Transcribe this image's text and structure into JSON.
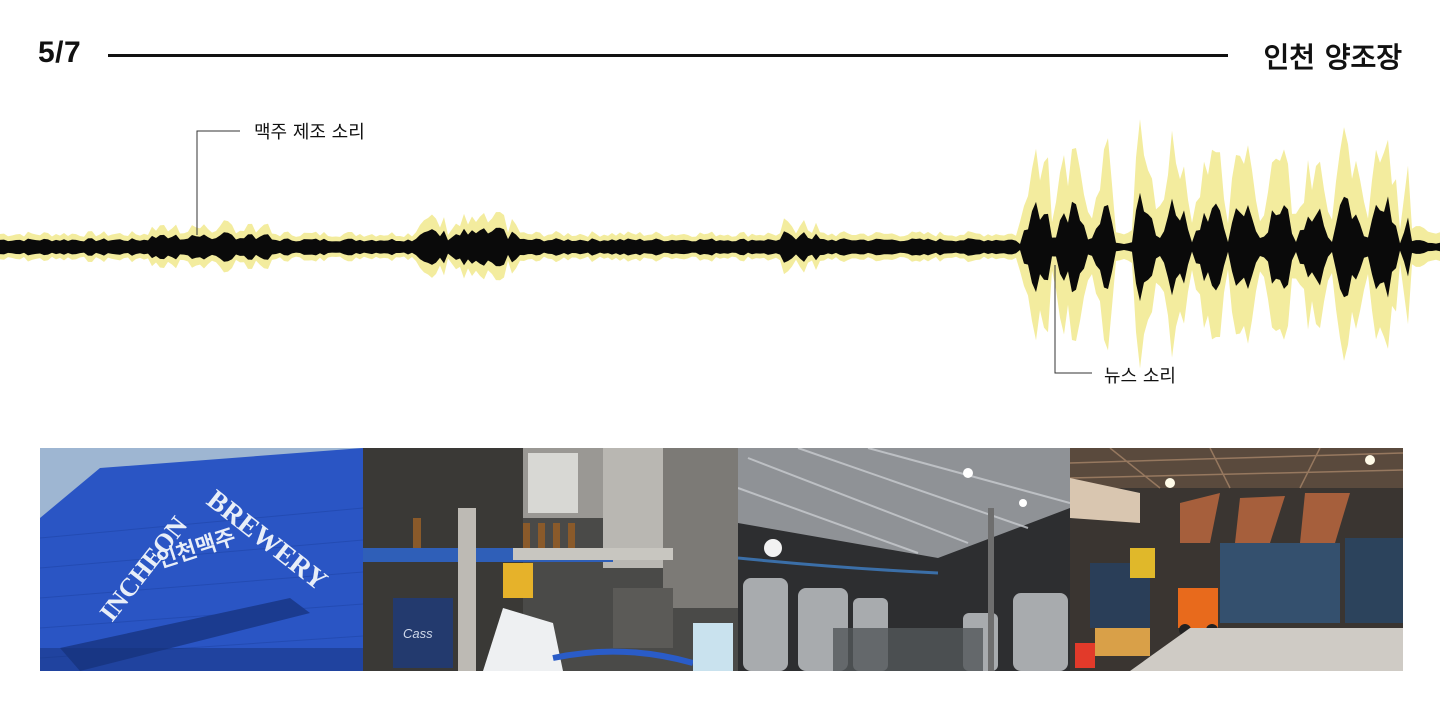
{
  "header": {
    "page_counter": "5/7",
    "title": "인천 양조장"
  },
  "waveform": {
    "colors": {
      "envelope": "#f3ec9e",
      "signal": "#0a0a0a"
    },
    "annotations": {
      "brewing_sound": "맥주 제조 소리",
      "news_sound": "뉴스 소리"
    }
  },
  "photos": {
    "sign": {
      "text_top": "INCHEON",
      "text_right": "BREWERY",
      "text_korean": "인천맥주",
      "wall_color": "#2a55c4"
    },
    "bottling_line": {
      "crate_label": "Cass"
    },
    "tank_hall": {},
    "warehouse": {}
  }
}
